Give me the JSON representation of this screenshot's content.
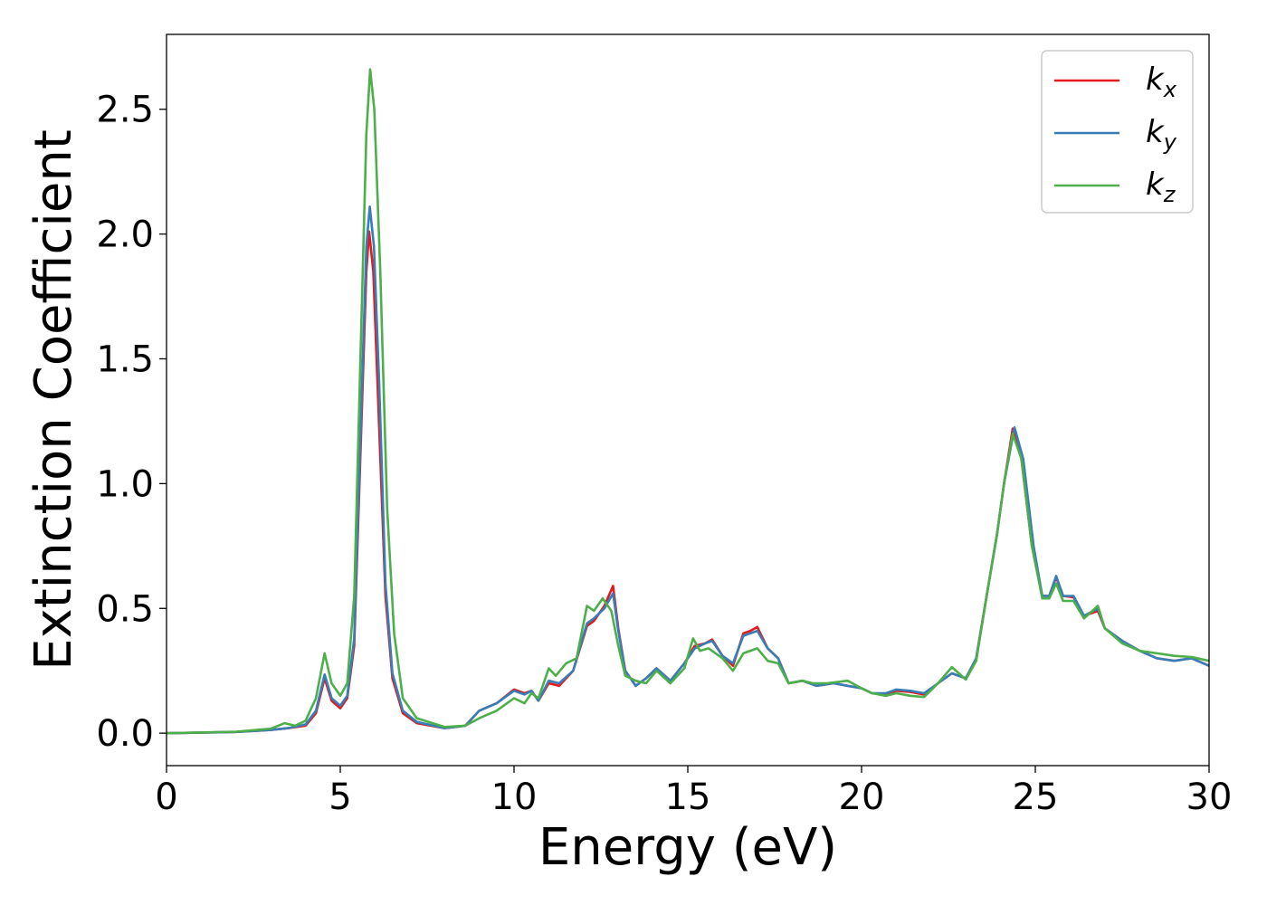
{
  "chart_data": {
    "type": "line",
    "xlabel": "Energy (eV)",
    "ylabel": "Extinction Coefficient",
    "xlim": [
      0,
      30
    ],
    "ylim": [
      -0.13,
      2.8
    ],
    "xticks": [
      0,
      5,
      10,
      15,
      20,
      25,
      30
    ],
    "yticks": [
      0.0,
      0.5,
      1.0,
      1.5,
      2.0,
      2.5
    ],
    "xtick_labels": [
      "0",
      "5",
      "10",
      "15",
      "20",
      "25",
      "30"
    ],
    "ytick_labels": [
      "0.0",
      "0.5",
      "1.0",
      "1.5",
      "2.0",
      "2.5"
    ],
    "grid": false,
    "legend_position": "top-right",
    "series": [
      {
        "name": "k",
        "subscript": "x",
        "color": "#e41a1c",
        "points": [
          [
            0,
            0
          ],
          [
            2,
            0.005
          ],
          [
            3,
            0.013
          ],
          [
            3.5,
            0.02
          ],
          [
            4,
            0.03
          ],
          [
            4.3,
            0.08
          ],
          [
            4.55,
            0.22
          ],
          [
            4.75,
            0.13
          ],
          [
            5,
            0.1
          ],
          [
            5.2,
            0.14
          ],
          [
            5.4,
            0.35
          ],
          [
            5.6,
            1.2
          ],
          [
            5.75,
            1.85
          ],
          [
            5.83,
            2.01
          ],
          [
            5.95,
            1.85
          ],
          [
            6.1,
            1.3
          ],
          [
            6.3,
            0.55
          ],
          [
            6.5,
            0.22
          ],
          [
            6.8,
            0.08
          ],
          [
            7.2,
            0.04
          ],
          [
            8,
            0.02
          ],
          [
            8.6,
            0.03
          ],
          [
            9,
            0.09
          ],
          [
            9.5,
            0.12
          ],
          [
            10,
            0.175
          ],
          [
            10.3,
            0.16
          ],
          [
            10.5,
            0.17
          ],
          [
            10.7,
            0.13
          ],
          [
            11,
            0.2
          ],
          [
            11.3,
            0.19
          ],
          [
            11.7,
            0.25
          ],
          [
            12.1,
            0.43
          ],
          [
            12.3,
            0.45
          ],
          [
            12.6,
            0.51
          ],
          [
            12.85,
            0.59
          ],
          [
            13,
            0.42
          ],
          [
            13.2,
            0.25
          ],
          [
            13.5,
            0.19
          ],
          [
            13.8,
            0.22
          ],
          [
            14.1,
            0.26
          ],
          [
            14.5,
            0.21
          ],
          [
            14.9,
            0.28
          ],
          [
            15.2,
            0.35
          ],
          [
            15.5,
            0.36
          ],
          [
            15.7,
            0.375
          ],
          [
            16,
            0.31
          ],
          [
            16.3,
            0.27
          ],
          [
            16.6,
            0.4
          ],
          [
            16.8,
            0.41
          ],
          [
            17,
            0.425
          ],
          [
            17.3,
            0.34
          ],
          [
            17.6,
            0.3
          ],
          [
            17.9,
            0.2
          ],
          [
            18.3,
            0.21
          ],
          [
            18.7,
            0.19
          ],
          [
            19.2,
            0.2
          ],
          [
            19.6,
            0.19
          ],
          [
            20,
            0.18
          ],
          [
            20.3,
            0.16
          ],
          [
            20.7,
            0.155
          ],
          [
            21,
            0.17
          ],
          [
            21.4,
            0.165
          ],
          [
            21.8,
            0.155
          ],
          [
            22.2,
            0.2
          ],
          [
            22.6,
            0.24
          ],
          [
            23,
            0.22
          ],
          [
            23.3,
            0.3
          ],
          [
            23.6,
            0.55
          ],
          [
            23.9,
            0.8
          ],
          [
            24.1,
            1.0
          ],
          [
            24.35,
            1.22
          ],
          [
            24.6,
            1.1
          ],
          [
            24.9,
            0.75
          ],
          [
            25.2,
            0.55
          ],
          [
            25.4,
            0.55
          ],
          [
            25.6,
            0.625
          ],
          [
            25.8,
            0.55
          ],
          [
            26.1,
            0.545
          ],
          [
            26.4,
            0.47
          ],
          [
            26.8,
            0.49
          ],
          [
            27,
            0.42
          ],
          [
            27.5,
            0.37
          ],
          [
            28,
            0.33
          ],
          [
            28.5,
            0.3
          ],
          [
            29,
            0.29
          ],
          [
            29.5,
            0.3
          ],
          [
            30,
            0.27
          ]
        ]
      },
      {
        "name": "k",
        "subscript": "y",
        "color": "#377eb8",
        "points": [
          [
            0,
            0
          ],
          [
            2,
            0.005
          ],
          [
            3,
            0.013
          ],
          [
            3.5,
            0.02
          ],
          [
            4,
            0.035
          ],
          [
            4.3,
            0.09
          ],
          [
            4.55,
            0.235
          ],
          [
            4.75,
            0.14
          ],
          [
            5,
            0.11
          ],
          [
            5.2,
            0.15
          ],
          [
            5.4,
            0.38
          ],
          [
            5.6,
            1.28
          ],
          [
            5.75,
            1.95
          ],
          [
            5.85,
            2.11
          ],
          [
            5.97,
            1.95
          ],
          [
            6.12,
            1.4
          ],
          [
            6.3,
            0.6
          ],
          [
            6.5,
            0.24
          ],
          [
            6.8,
            0.09
          ],
          [
            7.2,
            0.045
          ],
          [
            8,
            0.02
          ],
          [
            8.6,
            0.03
          ],
          [
            9,
            0.09
          ],
          [
            9.5,
            0.12
          ],
          [
            10,
            0.17
          ],
          [
            10.3,
            0.155
          ],
          [
            10.5,
            0.17
          ],
          [
            10.7,
            0.13
          ],
          [
            11,
            0.21
          ],
          [
            11.3,
            0.2
          ],
          [
            11.7,
            0.25
          ],
          [
            12.1,
            0.44
          ],
          [
            12.3,
            0.46
          ],
          [
            12.6,
            0.5
          ],
          [
            12.85,
            0.56
          ],
          [
            13,
            0.41
          ],
          [
            13.2,
            0.25
          ],
          [
            13.5,
            0.19
          ],
          [
            13.8,
            0.22
          ],
          [
            14.1,
            0.26
          ],
          [
            14.5,
            0.21
          ],
          [
            14.9,
            0.28
          ],
          [
            15.2,
            0.34
          ],
          [
            15.5,
            0.36
          ],
          [
            15.7,
            0.37
          ],
          [
            16,
            0.31
          ],
          [
            16.3,
            0.28
          ],
          [
            16.6,
            0.39
          ],
          [
            16.8,
            0.4
          ],
          [
            17,
            0.41
          ],
          [
            17.3,
            0.34
          ],
          [
            17.6,
            0.3
          ],
          [
            17.9,
            0.2
          ],
          [
            18.3,
            0.21
          ],
          [
            18.7,
            0.19
          ],
          [
            19.2,
            0.2
          ],
          [
            19.6,
            0.19
          ],
          [
            20,
            0.18
          ],
          [
            20.3,
            0.16
          ],
          [
            20.7,
            0.16
          ],
          [
            21,
            0.175
          ],
          [
            21.4,
            0.17
          ],
          [
            21.8,
            0.16
          ],
          [
            22.2,
            0.2
          ],
          [
            22.6,
            0.24
          ],
          [
            23,
            0.22
          ],
          [
            23.3,
            0.3
          ],
          [
            23.6,
            0.55
          ],
          [
            23.9,
            0.8
          ],
          [
            24.1,
            1.0
          ],
          [
            24.4,
            1.225
          ],
          [
            24.65,
            1.1
          ],
          [
            24.95,
            0.75
          ],
          [
            25.2,
            0.55
          ],
          [
            25.4,
            0.55
          ],
          [
            25.6,
            0.63
          ],
          [
            25.8,
            0.55
          ],
          [
            26.1,
            0.55
          ],
          [
            26.4,
            0.47
          ],
          [
            26.8,
            0.5
          ],
          [
            27,
            0.42
          ],
          [
            27.5,
            0.37
          ],
          [
            28,
            0.33
          ],
          [
            28.5,
            0.3
          ],
          [
            29,
            0.29
          ],
          [
            29.5,
            0.3
          ],
          [
            30,
            0.27
          ]
        ]
      },
      {
        "name": "k",
        "subscript": "z",
        "color": "#4daf4a",
        "points": [
          [
            0,
            0
          ],
          [
            2,
            0.006
          ],
          [
            3,
            0.018
          ],
          [
            3.4,
            0.04
          ],
          [
            3.7,
            0.03
          ],
          [
            4,
            0.05
          ],
          [
            4.3,
            0.14
          ],
          [
            4.55,
            0.32
          ],
          [
            4.75,
            0.2
          ],
          [
            5,
            0.15
          ],
          [
            5.2,
            0.2
          ],
          [
            5.4,
            0.55
          ],
          [
            5.6,
            1.6
          ],
          [
            5.75,
            2.4
          ],
          [
            5.86,
            2.66
          ],
          [
            5.98,
            2.5
          ],
          [
            6.15,
            1.85
          ],
          [
            6.35,
            0.9
          ],
          [
            6.55,
            0.4
          ],
          [
            6.8,
            0.14
          ],
          [
            7.2,
            0.06
          ],
          [
            8,
            0.025
          ],
          [
            8.6,
            0.03
          ],
          [
            9,
            0.06
          ],
          [
            9.5,
            0.09
          ],
          [
            10,
            0.14
          ],
          [
            10.3,
            0.12
          ],
          [
            10.5,
            0.16
          ],
          [
            10.7,
            0.14
          ],
          [
            11,
            0.26
          ],
          [
            11.2,
            0.23
          ],
          [
            11.5,
            0.28
          ],
          [
            11.8,
            0.3
          ],
          [
            12.1,
            0.51
          ],
          [
            12.3,
            0.49
          ],
          [
            12.55,
            0.54
          ],
          [
            12.8,
            0.49
          ],
          [
            13,
            0.35
          ],
          [
            13.2,
            0.23
          ],
          [
            13.5,
            0.21
          ],
          [
            13.8,
            0.2
          ],
          [
            14.1,
            0.25
          ],
          [
            14.5,
            0.2
          ],
          [
            14.9,
            0.26
          ],
          [
            15.15,
            0.38
          ],
          [
            15.35,
            0.33
          ],
          [
            15.6,
            0.34
          ],
          [
            16,
            0.3
          ],
          [
            16.3,
            0.25
          ],
          [
            16.6,
            0.32
          ],
          [
            16.8,
            0.33
          ],
          [
            17,
            0.34
          ],
          [
            17.3,
            0.29
          ],
          [
            17.6,
            0.28
          ],
          [
            17.9,
            0.2
          ],
          [
            18.3,
            0.21
          ],
          [
            18.6,
            0.2
          ],
          [
            19,
            0.2
          ],
          [
            19.6,
            0.21
          ],
          [
            20,
            0.18
          ],
          [
            20.3,
            0.16
          ],
          [
            20.7,
            0.15
          ],
          [
            21,
            0.16
          ],
          [
            21.4,
            0.15
          ],
          [
            21.8,
            0.145
          ],
          [
            22.2,
            0.2
          ],
          [
            22.6,
            0.265
          ],
          [
            23,
            0.215
          ],
          [
            23.3,
            0.29
          ],
          [
            23.6,
            0.55
          ],
          [
            23.9,
            0.8
          ],
          [
            24.1,
            1.0
          ],
          [
            24.35,
            1.2
          ],
          [
            24.6,
            1.1
          ],
          [
            24.9,
            0.75
          ],
          [
            25.2,
            0.54
          ],
          [
            25.4,
            0.54
          ],
          [
            25.6,
            0.6
          ],
          [
            25.8,
            0.53
          ],
          [
            26.1,
            0.53
          ],
          [
            26.4,
            0.46
          ],
          [
            26.8,
            0.51
          ],
          [
            27,
            0.42
          ],
          [
            27.5,
            0.36
          ],
          [
            28,
            0.33
          ],
          [
            28.5,
            0.32
          ],
          [
            29,
            0.31
          ],
          [
            29.5,
            0.305
          ],
          [
            30,
            0.29
          ]
        ]
      }
    ]
  }
}
